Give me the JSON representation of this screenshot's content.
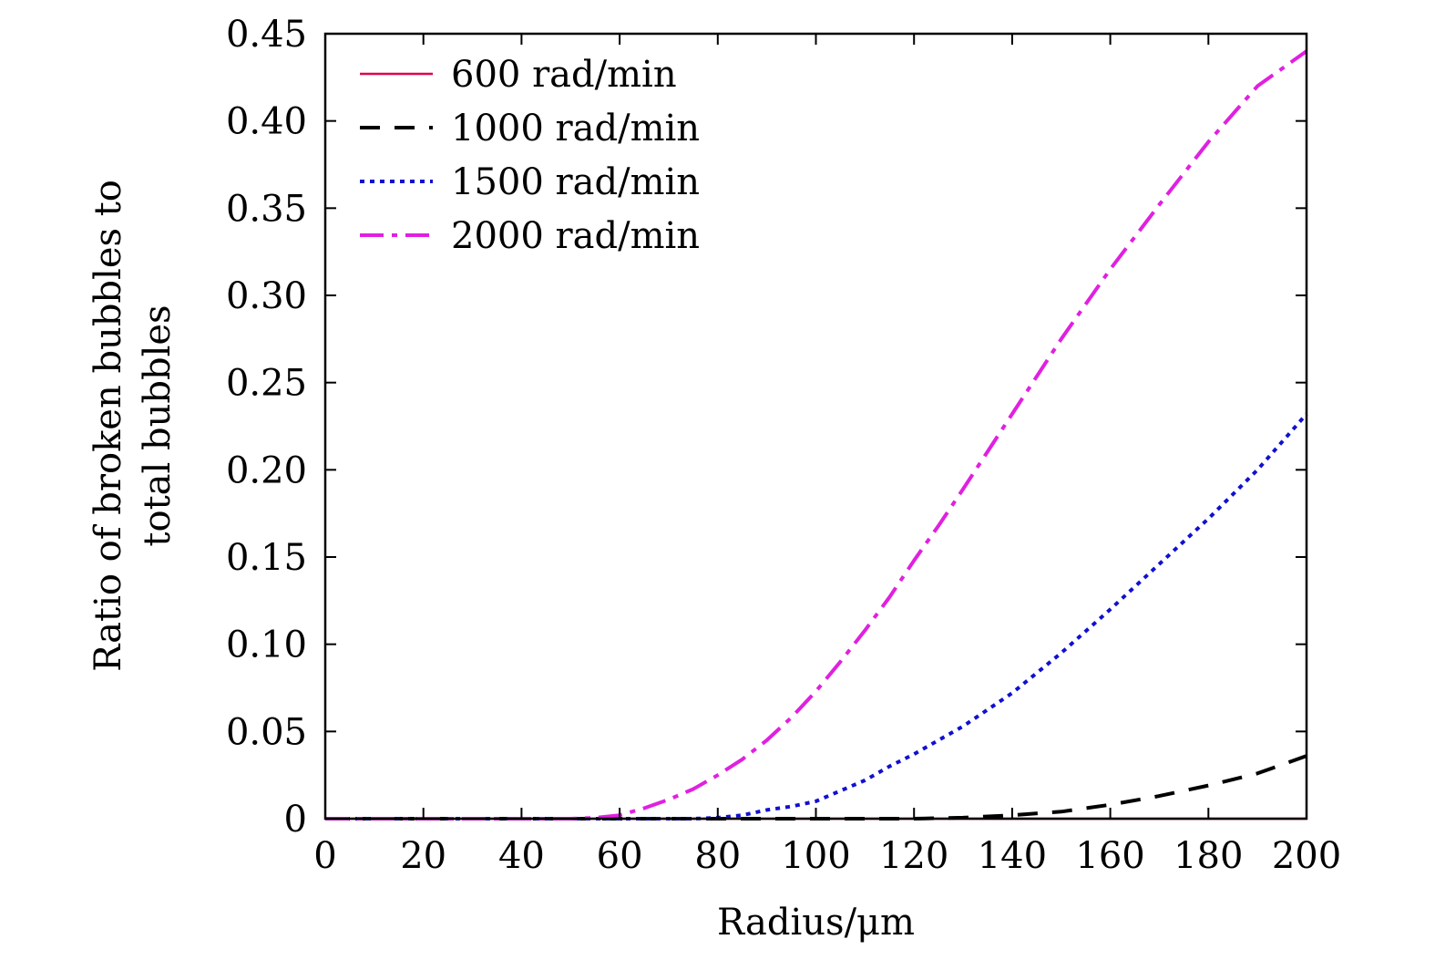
{
  "chart_data": {
    "type": "line",
    "title": "",
    "xlabel": "Radius/μm",
    "ylabel_lines": [
      "Ratio of broken bubbles to",
      "total bubbles"
    ],
    "xlim": [
      0,
      200
    ],
    "ylim": [
      0,
      0.45
    ],
    "xticks": [
      0,
      20,
      40,
      60,
      80,
      100,
      120,
      140,
      160,
      180,
      200
    ],
    "xtick_labels": [
      "0",
      "20",
      "40",
      "60",
      "80",
      "100",
      "120",
      "140",
      "160",
      "180",
      "200"
    ],
    "yticks": [
      0,
      0.05,
      0.1,
      0.15,
      0.2,
      0.25,
      0.3,
      0.35,
      0.4,
      0.45
    ],
    "ytick_labels": [
      "0",
      "0.05",
      "0.10",
      "0.15",
      "0.20",
      "0.25",
      "0.30",
      "0.35",
      "0.40",
      "0.45"
    ],
    "grid": false,
    "legend_position": "top-left",
    "x": [
      0,
      20,
      40,
      50,
      55,
      60,
      65,
      70,
      75,
      80,
      85,
      90,
      95,
      100,
      105,
      110,
      115,
      120,
      125,
      130,
      140,
      150,
      160,
      170,
      180,
      190,
      200
    ],
    "series": [
      {
        "name": "600 rad/min",
        "color": "#e0004a",
        "dash": "solid",
        "values": [
          0,
          0,
          0,
          0,
          0,
          0,
          0,
          0,
          0,
          0,
          0,
          0,
          0,
          0,
          0,
          0,
          0,
          0,
          0,
          0,
          0,
          0,
          0,
          0,
          0,
          0,
          0
        ]
      },
      {
        "name": "1000 rad/min",
        "color": "#000000",
        "dash": "dashed",
        "values": [
          0,
          0,
          0,
          0,
          0,
          0,
          0,
          0,
          0,
          0,
          0,
          0,
          0,
          0,
          0,
          0,
          0,
          0,
          0.0003,
          0.0006,
          0.002,
          0.004,
          0.008,
          0.013,
          0.019,
          0.026,
          0.036
        ]
      },
      {
        "name": "1500 rad/min",
        "color": "#1010d0",
        "dash": "dotted",
        "values": [
          0,
          0,
          0,
          0,
          0,
          0,
          0,
          0,
          0,
          0.0005,
          0.002,
          0.005,
          0.007,
          0.01,
          0.016,
          0.022,
          0.03,
          0.037,
          0.045,
          0.053,
          0.072,
          0.095,
          0.12,
          0.146,
          0.172,
          0.2,
          0.232
        ]
      },
      {
        "name": "2000 rad/min",
        "color": "#e020e0",
        "dash": "dashdot",
        "values": [
          0,
          0,
          0,
          0,
          0.0005,
          0.002,
          0.006,
          0.011,
          0.017,
          0.025,
          0.034,
          0.045,
          0.058,
          0.073,
          0.09,
          0.108,
          0.127,
          0.148,
          0.168,
          0.189,
          0.232,
          0.275,
          0.315,
          0.352,
          0.388,
          0.42,
          0.44
        ]
      }
    ]
  }
}
